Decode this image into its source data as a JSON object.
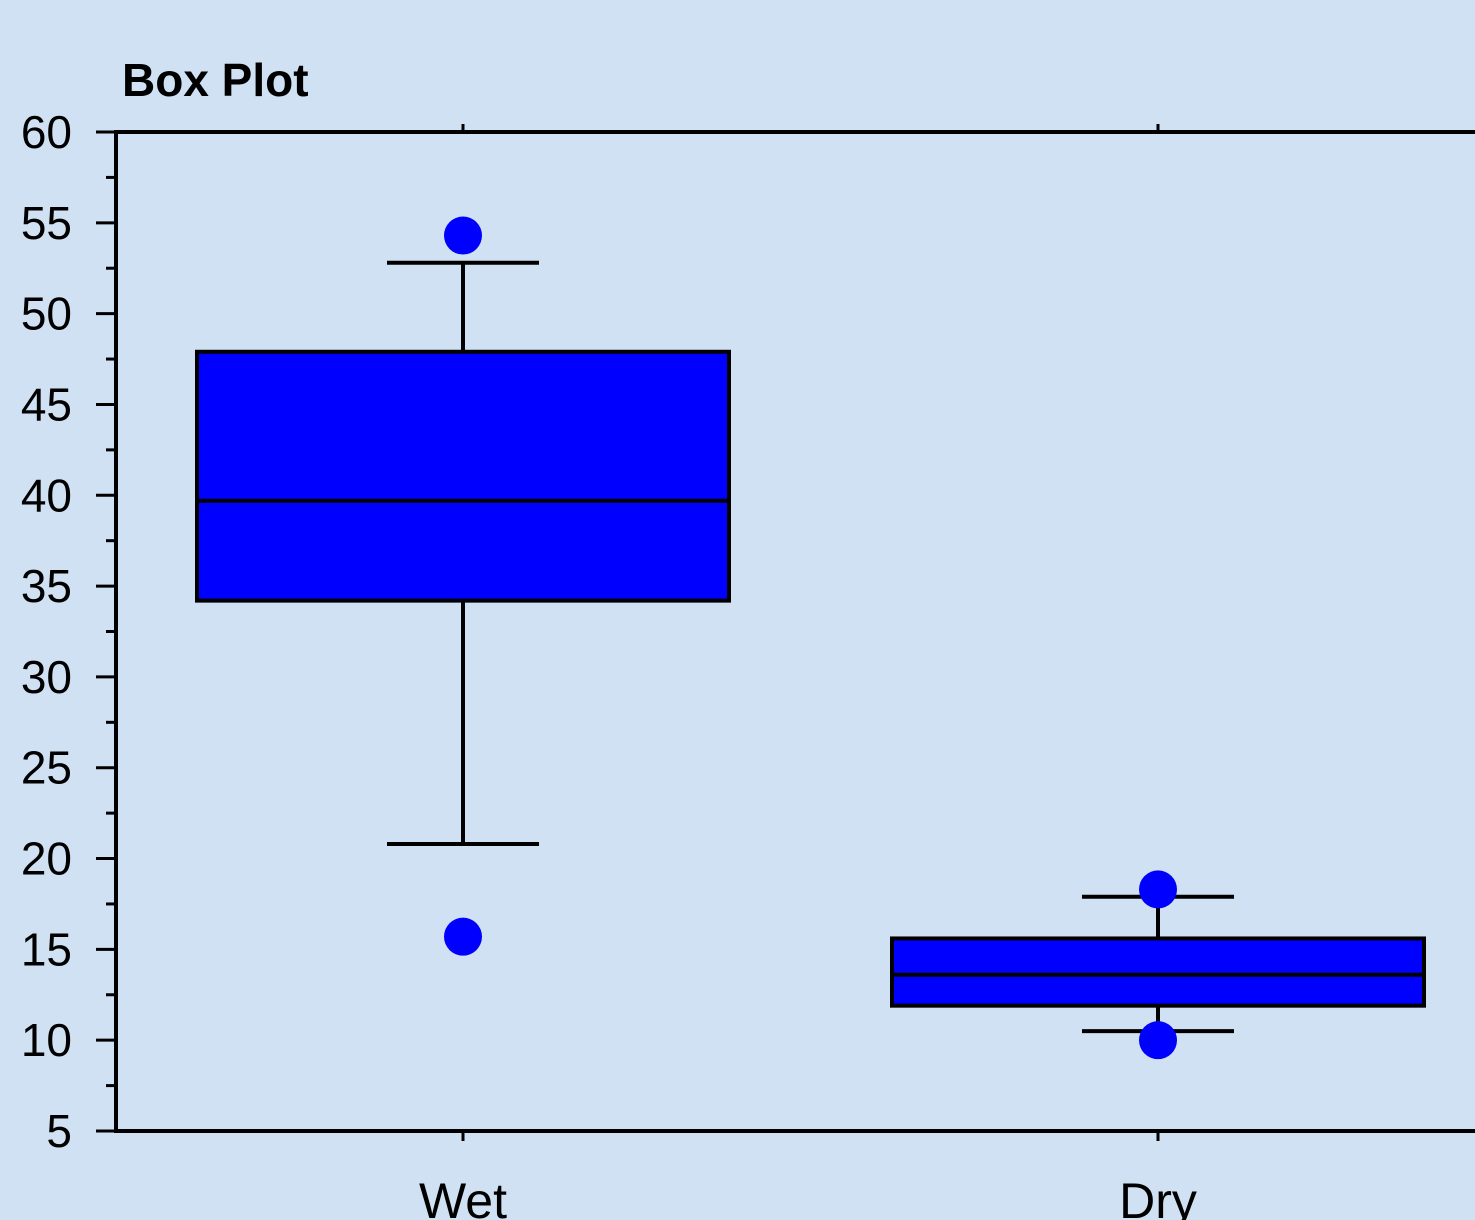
{
  "chart_data": {
    "type": "box",
    "title": "Box Plot",
    "xlabel": "",
    "ylabel": "",
    "ylim": [
      5,
      60
    ],
    "yticks": [
      "60",
      "55",
      "50",
      "45",
      "40",
      "35",
      "30",
      "25",
      "20",
      "15",
      "10",
      "5"
    ],
    "categories": [
      "Wet",
      "Dry"
    ],
    "boxes": [
      {
        "category": "Wet",
        "whisker_low": 20.8,
        "q1": 34.2,
        "median": 39.7,
        "q3": 47.9,
        "whisker_high": 52.8,
        "outliers": [
          54.3,
          15.7
        ]
      },
      {
        "category": "Dry",
        "whisker_low": 10.5,
        "q1": 11.9,
        "median": 13.6,
        "q3": 15.6,
        "whisker_high": 17.9,
        "outliers": [
          18.3,
          10.0
        ]
      }
    ],
    "grid": false,
    "legend": "none",
    "colors": {
      "background": "#cfe1f2",
      "box_fill": "#0000ff",
      "outlier": "#0000ff",
      "line": "#000000"
    }
  }
}
